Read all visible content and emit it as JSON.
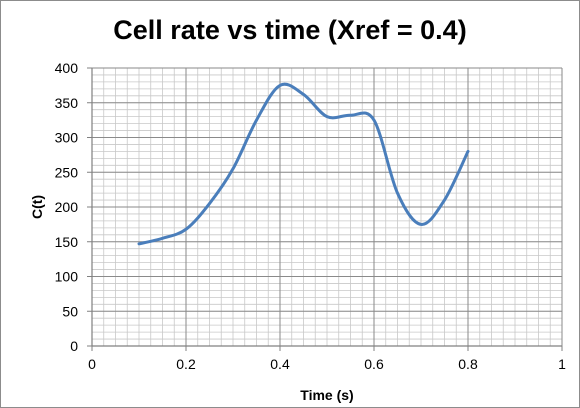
{
  "chart_data": {
    "type": "line",
    "title": "Cell rate vs time (Xref = 0.4)",
    "xlabel": "Time (s)",
    "ylabel": "C(t)",
    "xlim": [
      0,
      1
    ],
    "ylim": [
      0,
      400
    ],
    "x_ticks": [
      "0",
      "0.2",
      "0.4",
      "0.6",
      "0.8",
      "1"
    ],
    "y_ticks": [
      "0",
      "50",
      "100",
      "150",
      "200",
      "250",
      "300",
      "350",
      "400"
    ],
    "grid": true,
    "legend": "none",
    "series": [
      {
        "color": "#4a7ebb",
        "x": [
          0.1,
          0.15,
          0.2,
          0.25,
          0.3,
          0.35,
          0.4,
          0.45,
          0.5,
          0.55,
          0.6,
          0.65,
          0.7,
          0.75,
          0.8
        ],
        "y": [
          147,
          155,
          168,
          205,
          255,
          325,
          375,
          362,
          330,
          332,
          325,
          220,
          175,
          210,
          280
        ]
      }
    ]
  }
}
